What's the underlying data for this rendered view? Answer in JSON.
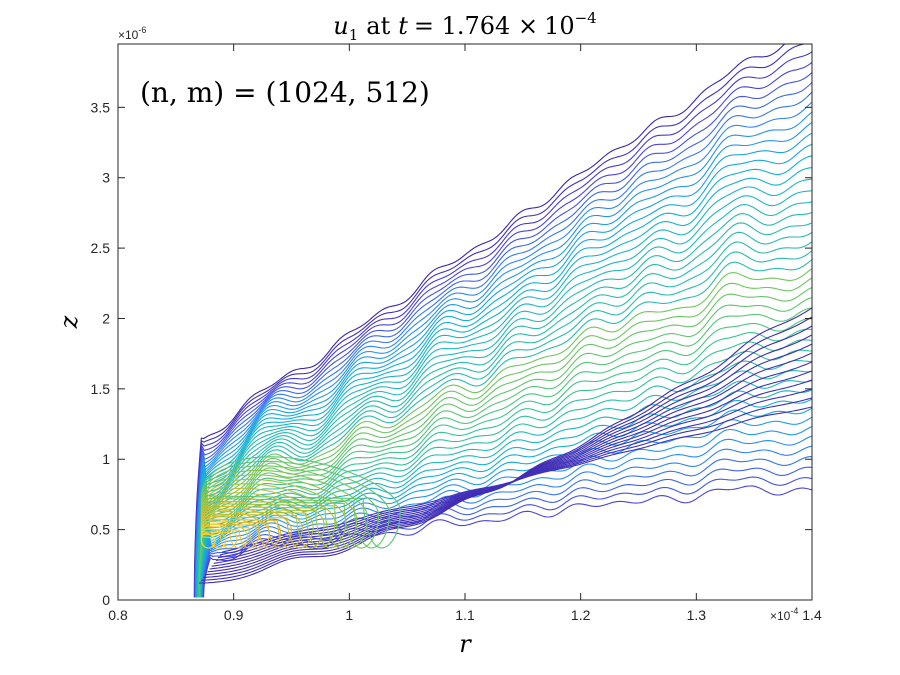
{
  "chart_data": {
    "type": "contour",
    "title": {
      "var": "u",
      "sub": "1",
      "at": "at",
      "t": "t",
      "eq": "= 1.764 ×",
      "base": "10",
      "exp": "−4"
    },
    "annotation": "(n, m) = (1024, 512)",
    "xlabel": "r",
    "ylabel": "z",
    "x_multiplier": "×10",
    "x_multiplier_exp": "-4",
    "y_multiplier": "×10",
    "y_multiplier_exp": "-6",
    "xlim": [
      0.8,
      1.4
    ],
    "ylim": [
      0,
      3.95
    ],
    "x_ticks": [
      0.8,
      0.9,
      1.0,
      1.1,
      1.2,
      1.3,
      1.4
    ],
    "x_tick_labels": [
      "0.8",
      "0.9",
      "1",
      "1.1",
      "1.2",
      "1.3",
      "1.4"
    ],
    "y_ticks": [
      0,
      0.5,
      1.0,
      1.5,
      2.0,
      2.5,
      3.0,
      3.5
    ],
    "y_tick_labels": [
      "0",
      "0.5",
      "1",
      "1.5",
      "2",
      "2.5",
      "3",
      "3.5"
    ],
    "grid": false,
    "colormap": [
      "#3e26a8",
      "#4a44df",
      "#2e87f7",
      "#12b1d6",
      "#35c496",
      "#95c83d",
      "#e2b92e",
      "#f9d824"
    ]
  }
}
